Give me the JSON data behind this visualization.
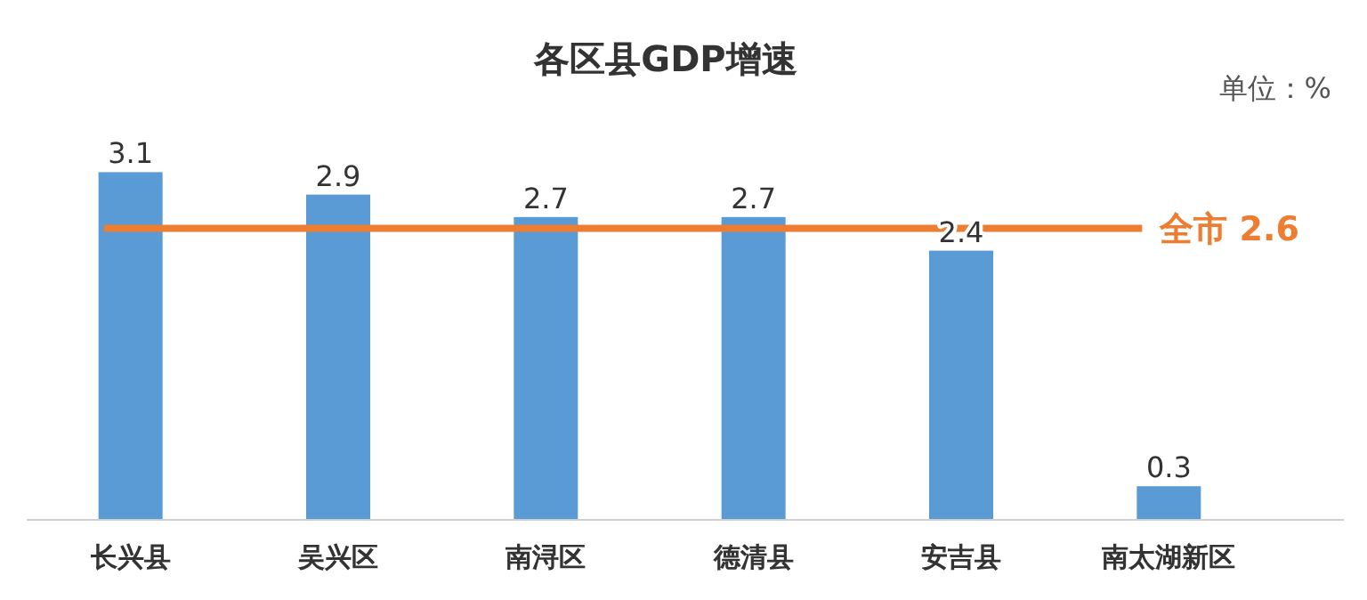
{
  "chart_data": {
    "type": "bar",
    "title": "各区县GDP增速",
    "annotations": [
      "单位：%"
    ],
    "categories": [
      "长兴县",
      "吴兴区",
      "南浔区",
      "德清县",
      "安吉县",
      "南太湖新区"
    ],
    "values": [
      3.1,
      2.9,
      2.7,
      2.7,
      2.4,
      0.3
    ],
    "color": "#5b9bd5",
    "data_labels": true,
    "ref_lines": [
      {
        "axis": "y",
        "value": 2.6,
        "label": "全市 2.6",
        "color": "#ed7d31"
      }
    ]
  }
}
